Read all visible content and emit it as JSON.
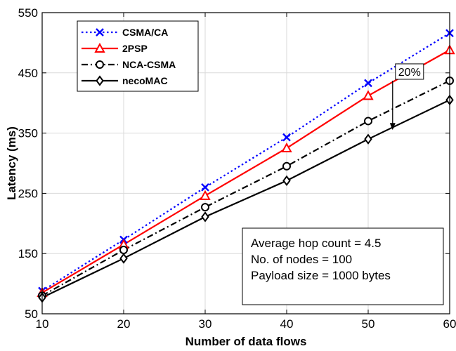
{
  "chart_data": {
    "type": "line",
    "xlabel": "Number of data flows",
    "ylabel": "Latency (ms)",
    "xlim": [
      10,
      60
    ],
    "ylim": [
      50,
      550
    ],
    "xticks": [
      10,
      20,
      30,
      40,
      50,
      60
    ],
    "yticks": [
      50,
      150,
      250,
      350,
      450,
      550
    ],
    "grid": true,
    "legend_position": "top-left",
    "x": [
      10,
      20,
      30,
      40,
      50,
      60
    ],
    "series": [
      {
        "name": "CSMA/CA",
        "values": [
          88,
          173,
          260,
          343,
          433,
          516
        ],
        "color": "#0000ff",
        "linestyle": "dotted",
        "marker": "x"
      },
      {
        "name": "2PSP",
        "values": [
          85,
          165,
          246,
          325,
          412,
          488
        ],
        "color": "#ff0000",
        "linestyle": "solid",
        "marker": "triangle"
      },
      {
        "name": "NCA-CSMA",
        "values": [
          80,
          156,
          227,
          295,
          370,
          437
        ],
        "color": "#000000",
        "linestyle": "dashdot",
        "marker": "circle"
      },
      {
        "name": "necoMAC",
        "values": [
          77,
          142,
          211,
          271,
          340,
          405
        ],
        "color": "#000000",
        "linestyle": "solid",
        "marker": "diamond"
      }
    ],
    "annotation": {
      "text": "20%",
      "x": 53,
      "from": 437,
      "to": 355
    },
    "note_lines": [
      "Average hop count = 4.5",
      "No. of nodes = 100",
      "Payload size = 1000 bytes"
    ]
  }
}
